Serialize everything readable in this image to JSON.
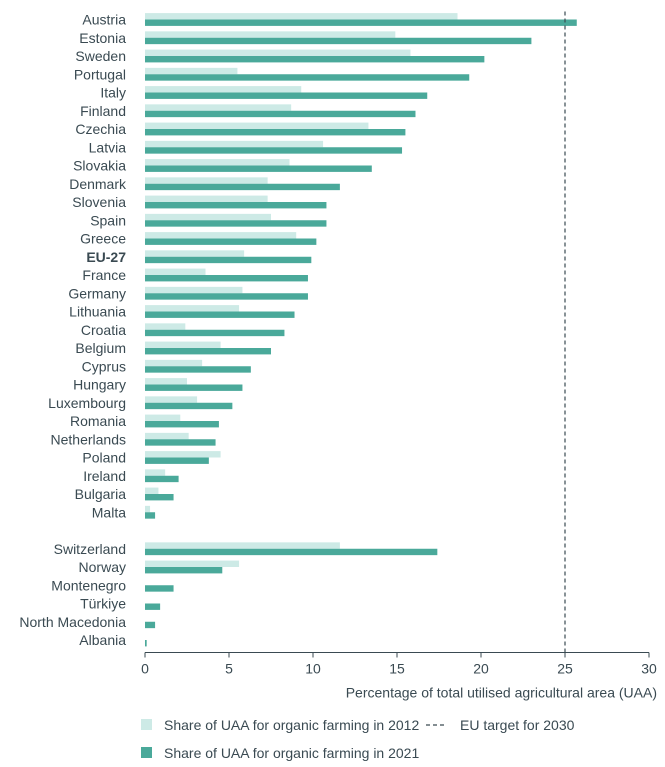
{
  "chart_data": {
    "type": "bar",
    "orientation": "horizontal",
    "title": "",
    "xlabel": "Percentage of total utilised agricultural area (UAA)",
    "ylabel": "",
    "xlim": [
      0,
      30
    ],
    "x_ticks": [
      0,
      5,
      10,
      15,
      20,
      25,
      30
    ],
    "grid": false,
    "legend_position": "bottom",
    "categories": [
      "Austria",
      "Estonia",
      "Sweden",
      "Portugal",
      "Italy",
      "Finland",
      "Czechia",
      "Latvia",
      "Slovakia",
      "Denmark",
      "Slovenia",
      "Spain",
      "Greece",
      "EU-27",
      "France",
      "Germany",
      "Lithuania",
      "Croatia",
      "Belgium",
      "Cyprus",
      "Hungary",
      "Luxembourg",
      "Romania",
      "Netherlands",
      "Poland",
      "Ireland",
      "Bulgaria",
      "Malta",
      "Switzerland",
      "Norway",
      "Montenegro",
      "Türkiye",
      "North Macedonia",
      "Albania"
    ],
    "highlight_category": "EU-27",
    "gap_before": "Switzerland",
    "series": [
      {
        "name": "Share of UAA for organic farming in 2012",
        "color": "#cdeae6",
        "values": [
          18.6,
          14.9,
          15.8,
          5.5,
          9.3,
          8.7,
          13.3,
          10.6,
          8.6,
          7.3,
          7.3,
          7.5,
          9.0,
          5.9,
          3.6,
          5.8,
          5.6,
          2.4,
          4.5,
          3.4,
          2.5,
          3.1,
          2.1,
          2.6,
          4.5,
          1.2,
          0.8,
          0.3,
          11.6,
          5.6,
          null,
          null,
          null,
          null
        ]
      },
      {
        "name": "Share of UAA for organic farming in 2021",
        "color": "#4aa99a",
        "values": [
          25.7,
          23.0,
          20.2,
          19.3,
          16.8,
          16.1,
          15.5,
          15.3,
          13.5,
          11.6,
          10.8,
          10.8,
          10.2,
          9.9,
          9.7,
          9.7,
          8.9,
          8.3,
          7.5,
          6.3,
          5.8,
          5.2,
          4.4,
          4.2,
          3.8,
          2.0,
          1.7,
          0.6,
          17.4,
          4.6,
          1.7,
          0.9,
          0.6,
          0.1
        ]
      }
    ],
    "reference_line": {
      "value": 25,
      "label": "EU target for 2030",
      "style": "dashed",
      "color": "#3a4a52"
    }
  },
  "legend": {
    "item_2012": "Share of UAA for organic farming in 2012",
    "item_2021": "Share of UAA for organic farming in 2021",
    "item_target": "EU target for 2030"
  }
}
